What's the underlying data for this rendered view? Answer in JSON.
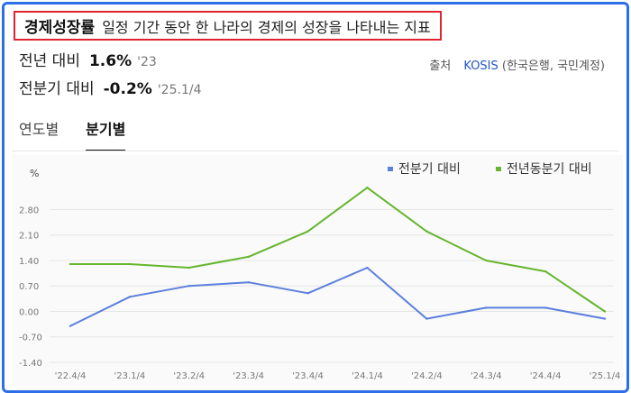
{
  "header": {
    "title": "경제성장률",
    "description": "일정 기간 동안 한 나라의 경제의 성장을 나타내는 지표"
  },
  "stats": {
    "yoy_label": "전년 대비",
    "yoy_value": "1.6%",
    "yoy_period": "'23",
    "qoq_label": "전분기 대비",
    "qoq_value": "-0.2%",
    "qoq_period": "'25.1/4"
  },
  "source": {
    "label": "출처",
    "name": "KOSIS",
    "detail": "(한국은행, 국민계정)"
  },
  "tabs": [
    {
      "label": "연도별",
      "active": false
    },
    {
      "label": "분기별",
      "active": true
    }
  ],
  "colors": {
    "accent_border": "#2d6fe8",
    "title_border": "#e0232f",
    "series1": "#5b7fdc",
    "series2": "#66b52e",
    "grid": "#e5e5e5"
  },
  "chart_data": {
    "type": "line",
    "ylabel": "%",
    "x": [
      "'22.4/4",
      "'23.1/4",
      "'23.2/4",
      "'23.3/4",
      "'23.4/4",
      "'24.1/4",
      "'24.2/4",
      "'24.3/4",
      "'24.4/4",
      "'25.1/4"
    ],
    "yticks": [
      "2.80",
      "2.10",
      "1.40",
      "0.70",
      "0.00",
      "-0.70",
      "-1.40"
    ],
    "ylim": [
      -1.4,
      4.0
    ],
    "grid": true,
    "legend_position": "top-right",
    "series": [
      {
        "name": "전분기 대비",
        "color": "#5b7fdc",
        "values": [
          -0.4,
          0.4,
          0.7,
          0.8,
          0.5,
          1.2,
          -0.2,
          0.1,
          0.1,
          -0.2
        ]
      },
      {
        "name": "전년동분기 대비",
        "color": "#66b52e",
        "values": [
          1.3,
          1.3,
          1.2,
          1.5,
          2.2,
          3.4,
          2.2,
          1.4,
          1.1,
          0.0
        ]
      }
    ]
  }
}
